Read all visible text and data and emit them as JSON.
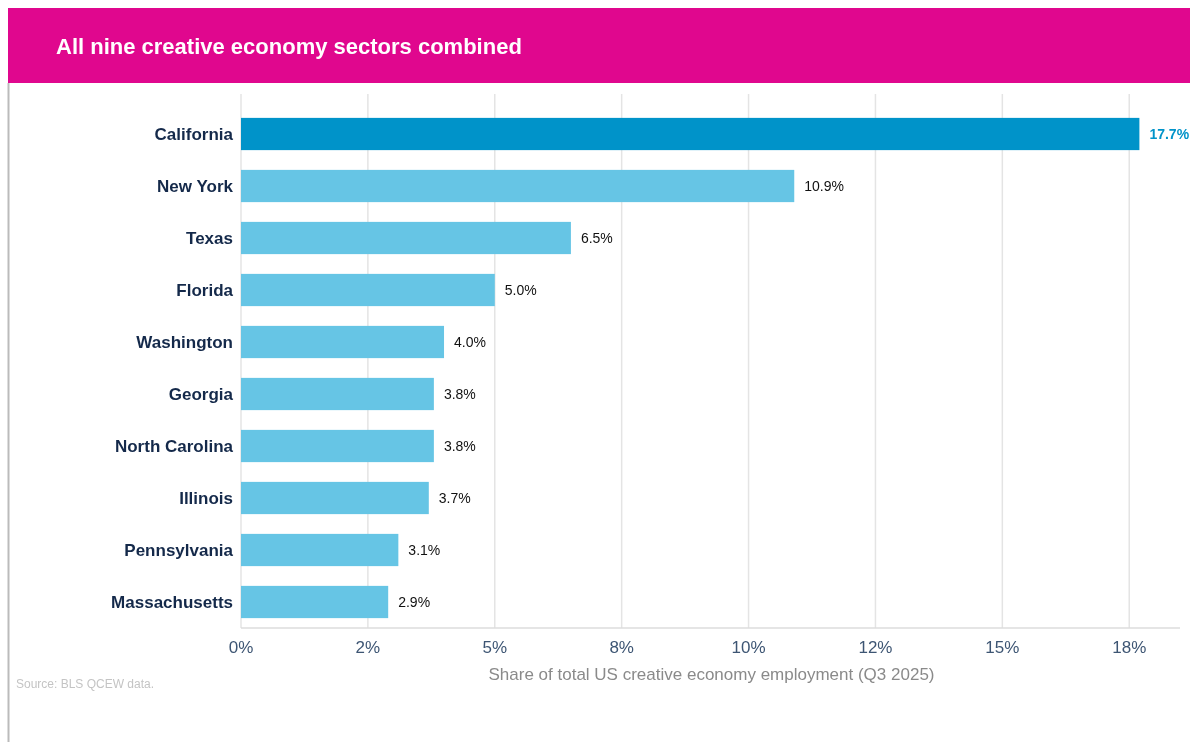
{
  "chart_data": {
    "type": "bar",
    "orientation": "horizontal",
    "title": "All nine creative economy sectors combined",
    "xlabel": "Share of total US creative economy employment (Q3 2025)",
    "categories": [
      "California",
      "New York",
      "Texas",
      "Florida",
      "Washington",
      "Georgia",
      "North Carolina",
      "Illinois",
      "Pennsylvania",
      "Massachusetts"
    ],
    "values": [
      17.7,
      10.9,
      6.5,
      5.0,
      4.0,
      3.8,
      3.8,
      3.7,
      3.1,
      2.9
    ],
    "value_labels": [
      "17.7%",
      "10.9%",
      "6.5%",
      "5.0%",
      "4.0%",
      "3.8%",
      "3.8%",
      "3.7%",
      "3.1%",
      "2.9%"
    ],
    "colors": [
      "#0093c9",
      "#66c5e5",
      "#66c5e5",
      "#66c5e5",
      "#66c5e5",
      "#66c5e5",
      "#66c5e5",
      "#66c5e5",
      "#66c5e5",
      "#66c5e5"
    ],
    "xlim": [
      0,
      18.5
    ],
    "xticks": [
      {
        "value": 0,
        "label": "0%"
      },
      {
        "value": 2.5,
        "label": "2%"
      },
      {
        "value": 5,
        "label": "5%"
      },
      {
        "value": 7.5,
        "label": "8%"
      },
      {
        "value": 10,
        "label": "10%"
      },
      {
        "value": 12.5,
        "label": "12%"
      },
      {
        "value": 15,
        "label": "15%"
      },
      {
        "value": 17.5,
        "label": "18%"
      }
    ],
    "grid": "x",
    "annotations": [
      "Source: BLS QCEW data."
    ]
  }
}
